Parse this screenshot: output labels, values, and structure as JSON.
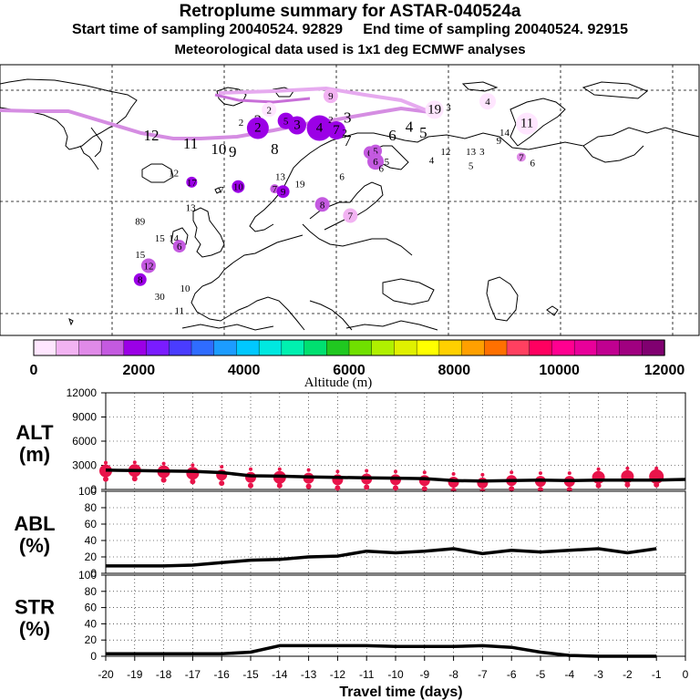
{
  "header": {
    "title": "Retroplume summary for ASTAR-040524a",
    "start_label": "Start time of sampling 20040524. 92829",
    "end_label": "End time of sampling 20040524. 92915",
    "met_label": "Meteorological data used is 1x1 deg ECMWF analyses"
  },
  "colorbar": {
    "label": "Altitude (m)",
    "tick_labels": [
      "0",
      "2000",
      "4000",
      "6000",
      "8000",
      "10000",
      "12000"
    ],
    "colors": [
      "#ffe6ff",
      "#f2b3f2",
      "#e08ae8",
      "#c45ae0",
      "#9b00e6",
      "#7a1cff",
      "#4a3cff",
      "#2f6cff",
      "#1c9cff",
      "#00c8ff",
      "#00e8e0",
      "#00f0b0",
      "#00e070",
      "#20c820",
      "#70e000",
      "#b0f000",
      "#e0f000",
      "#ffff00",
      "#ffd000",
      "#ffa000",
      "#ff7000",
      "#ff4060",
      "#ff0060",
      "#ff0090",
      "#e8009a",
      "#c00090",
      "#a00080",
      "#800070"
    ]
  },
  "plume_labels": [
    {
      "t": "12",
      "lon": -33,
      "lat": 72,
      "z": 3000,
      "r": 0
    },
    {
      "t": "11",
      "lon": -26,
      "lat": 70.5,
      "z": 3000,
      "r": 0
    },
    {
      "t": "10",
      "lon": -21,
      "lat": 69.5,
      "z": 3000,
      "r": 0
    },
    {
      "t": "9",
      "lon": -18.5,
      "lat": 69,
      "z": 3000,
      "r": 0
    },
    {
      "t": "8",
      "lon": -11,
      "lat": 69.5,
      "z": 3000,
      "r": 0
    },
    {
      "t": "7",
      "lon": 2,
      "lat": 71,
      "z": 3000,
      "r": 0
    },
    {
      "t": "6",
      "lon": 10,
      "lat": 72,
      "z": 3000,
      "r": 0
    },
    {
      "t": "5",
      "lon": 15.5,
      "lat": 72.5,
      "z": 3000,
      "r": 0
    },
    {
      "t": "4",
      "lon": 13,
      "lat": 73.5,
      "z": 3000,
      "r": 0
    },
    {
      "t": "3",
      "lon": 2,
      "lat": 75.2,
      "z": 3000,
      "r": 0
    },
    {
      "t": "2",
      "lon": -14,
      "lat": 74.7,
      "z": 3000,
      "r": 0
    },
    {
      "t": "2",
      "lon": -14,
      "lat": 73.2,
      "z": 2000,
      "r": 12
    },
    {
      "t": "3",
      "lon": -7,
      "lat": 73.7,
      "z": 2000,
      "r": 10
    },
    {
      "t": "4",
      "lon": -3,
      "lat": 73.2,
      "z": 2000,
      "r": 14
    },
    {
      "t": "5",
      "lon": -9,
      "lat": 74.5,
      "z": 1800,
      "r": 9
    },
    {
      "t": "2",
      "lon": -12,
      "lat": 76.5,
      "z": 300,
      "r": 8
    },
    {
      "t": "9",
      "lon": -1,
      "lat": 79,
      "z": 500,
      "r": 8
    },
    {
      "t": "2",
      "lon": -1,
      "lat": 74.8,
      "z": 300,
      "r": 0
    },
    {
      "t": "2",
      "lon": -17,
      "lat": 74.3,
      "z": 300,
      "r": 0
    },
    {
      "t": "7",
      "lon": 0,
      "lat": 72.8,
      "z": 2000,
      "r": 10
    },
    {
      "t": "2",
      "lon": 1.5,
      "lat": 72.5,
      "z": 2000,
      "r": 0
    },
    {
      "t": "19",
      "lon": 17.5,
      "lat": 76.5,
      "z": 300,
      "r": 10
    },
    {
      "t": "3",
      "lon": 20,
      "lat": 77,
      "z": 300,
      "r": 0
    },
    {
      "t": "4",
      "lon": 27,
      "lat": 78,
      "z": 300,
      "r": 9
    },
    {
      "t": "11",
      "lon": 34,
      "lat": 74,
      "z": 400,
      "r": 12
    },
    {
      "t": "14",
      "lon": 30,
      "lat": 72.5,
      "z": 1000,
      "r": 0
    },
    {
      "t": "9",
      "lon": 29,
      "lat": 71,
      "z": 1200,
      "r": 0
    },
    {
      "t": "13",
      "lon": 24,
      "lat": 69,
      "z": 1800,
      "r": 0
    },
    {
      "t": "3",
      "lon": 26,
      "lat": 69,
      "z": 1000,
      "r": 0
    },
    {
      "t": "12",
      "lon": 19.5,
      "lat": 69,
      "z": 1600,
      "r": 0
    },
    {
      "t": "7",
      "lon": 33,
      "lat": 68,
      "z": 1200,
      "r": 5
    },
    {
      "t": "6",
      "lon": 35,
      "lat": 67,
      "z": 800,
      "r": 0
    },
    {
      "t": "4",
      "lon": 17,
      "lat": 67.5,
      "z": 600,
      "r": 0
    },
    {
      "t": "5",
      "lon": 24,
      "lat": 66.5,
      "z": 800,
      "r": 0
    },
    {
      "t": "6",
      "lon": 6,
      "lat": 68.8,
      "z": 1500,
      "r": 7
    },
    {
      "t": "5",
      "lon": 7,
      "lat": 69.1,
      "z": 1700,
      "r": 7
    },
    {
      "t": "6",
      "lon": 7,
      "lat": 67.2,
      "z": 1700,
      "r": 9
    },
    {
      "t": "5",
      "lon": 9,
      "lat": 67.2,
      "z": 600,
      "r": 0
    },
    {
      "t": "6",
      "lon": 8,
      "lat": 66,
      "z": 600,
      "r": 0
    },
    {
      "t": "6",
      "lon": 1,
      "lat": 64.5,
      "z": 1200,
      "r": 0
    },
    {
      "t": "12",
      "lon": -29,
      "lat": 65.2,
      "z": 1500,
      "r": 0
    },
    {
      "t": "17",
      "lon": -25.8,
      "lat": 63.5,
      "z": 1800,
      "r": 6
    },
    {
      "t": "7",
      "lon": -20.5,
      "lat": 62.2,
      "z": 1800,
      "r": 0
    },
    {
      "t": "10",
      "lon": -17.5,
      "lat": 62.7,
      "z": 1800,
      "r": 7
    },
    {
      "t": "13",
      "lon": -10,
      "lat": 64.5,
      "z": 1200,
      "r": 0
    },
    {
      "t": "7",
      "lon": -11,
      "lat": 62.3,
      "z": 1300,
      "r": 5
    },
    {
      "t": "9",
      "lon": -9.5,
      "lat": 61.8,
      "z": 1800,
      "r": 7
    },
    {
      "t": "19",
      "lon": -6.5,
      "lat": 63.2,
      "z": 1600,
      "r": 0
    },
    {
      "t": "8",
      "lon": -2.5,
      "lat": 59.5,
      "z": 1300,
      "r": 8
    },
    {
      "t": "7",
      "lon": 2.5,
      "lat": 57.5,
      "z": 500,
      "r": 8
    },
    {
      "t": "13",
      "lon": -26,
      "lat": 59,
      "z": 1800,
      "r": 0
    },
    {
      "t": "89",
      "lon": -35,
      "lat": 56.5,
      "z": 1600,
      "r": 0
    },
    {
      "t": "15",
      "lon": -31.5,
      "lat": 53.5,
      "z": 1500,
      "r": 0
    },
    {
      "t": "14",
      "lon": -29,
      "lat": 53.5,
      "z": 1500,
      "r": 0
    },
    {
      "t": "6",
      "lon": -28,
      "lat": 52,
      "z": 1600,
      "r": 7
    },
    {
      "t": "15",
      "lon": -35,
      "lat": 50.5,
      "z": 1500,
      "r": 0
    },
    {
      "t": "12",
      "lon": -33.5,
      "lat": 48.5,
      "z": 1600,
      "r": 8
    },
    {
      "t": "8",
      "lon": -35,
      "lat": 46,
      "z": 1900,
      "r": 7
    },
    {
      "t": "10",
      "lon": -27,
      "lat": 44.5,
      "z": 1600,
      "r": 0
    },
    {
      "t": "30",
      "lon": -31.5,
      "lat": 43,
      "z": 1600,
      "r": 0
    },
    {
      "t": "11",
      "lon": -28,
      "lat": 40.5,
      "z": 1600,
      "r": 0
    }
  ],
  "chart_data": [
    {
      "type": "line",
      "title": "ALT (m)",
      "panel_label_top": "ALT",
      "panel_label_bottom": "(m)",
      "yticks": [
        "12000",
        "9000",
        "6000",
        "3000",
        "0"
      ],
      "ylim": [
        0,
        12000
      ],
      "x": [
        -20,
        -19,
        -18,
        -17,
        -16,
        -15,
        -14,
        -13,
        -12,
        -11,
        -10,
        -9,
        -8,
        -7,
        -6,
        -5,
        -4,
        -3,
        -2,
        -1,
        0
      ],
      "values": [
        2400,
        2350,
        2300,
        2250,
        2100,
        1700,
        1650,
        1550,
        1500,
        1450,
        1400,
        1350,
        1100,
        1050,
        1100,
        1150,
        1100,
        1150,
        1150,
        1150,
        1250
      ],
      "markers": [
        {
          "x": -20,
          "y": 2300,
          "s": 7
        },
        {
          "x": -19,
          "y": 2350,
          "s": 7
        },
        {
          "x": -18,
          "y": 2200,
          "s": 7
        },
        {
          "x": -17,
          "y": 2000,
          "s": 7
        },
        {
          "x": -16,
          "y": 1800,
          "s": 6
        },
        {
          "x": -15,
          "y": 1500,
          "s": 6
        },
        {
          "x": -14,
          "y": 1500,
          "s": 7
        },
        {
          "x": -13,
          "y": 1400,
          "s": 6
        },
        {
          "x": -12,
          "y": 1200,
          "s": 6
        },
        {
          "x": -11,
          "y": 1300,
          "s": 6
        },
        {
          "x": -10,
          "y": 1200,
          "s": 6
        },
        {
          "x": -9,
          "y": 1100,
          "s": 6
        },
        {
          "x": -8,
          "y": 900,
          "s": 6
        },
        {
          "x": -7,
          "y": 800,
          "s": 6
        },
        {
          "x": -6,
          "y": 1100,
          "s": 6
        },
        {
          "x": -5,
          "y": 1000,
          "s": 6
        },
        {
          "x": -4,
          "y": 1000,
          "s": 6
        },
        {
          "x": -3,
          "y": 1500,
          "s": 7
        },
        {
          "x": -2,
          "y": 1600,
          "s": 7
        },
        {
          "x": -1,
          "y": 1600,
          "s": 8
        }
      ],
      "marker_color": "#e8144a"
    },
    {
      "type": "line",
      "title": "ABL (%)",
      "panel_label_top": "ABL",
      "panel_label_bottom": "(%)",
      "yticks": [
        "100",
        "80",
        "60",
        "40",
        "20",
        "0"
      ],
      "ylim": [
        0,
        100
      ],
      "x": [
        -20,
        -19,
        -18,
        -17,
        -16,
        -15,
        -14,
        -13,
        -12,
        -11,
        -10,
        -9,
        -8,
        -7,
        -6,
        -5,
        -4,
        -3,
        -2,
        -1
      ],
      "values": [
        9,
        9,
        9,
        10,
        13,
        16,
        17,
        20,
        21,
        27,
        25,
        27,
        30,
        24,
        28,
        26,
        28,
        30,
        25,
        30
      ]
    },
    {
      "type": "line",
      "title": "STR (%)",
      "panel_label_top": "STR",
      "panel_label_bottom": "(%)",
      "yticks": [
        "100",
        "80",
        "60",
        "40",
        "20",
        "0"
      ],
      "ylim": [
        0,
        100
      ],
      "x": [
        -20,
        -19,
        -18,
        -17,
        -16,
        -15,
        -14,
        -13,
        -12,
        -11,
        -10,
        -9,
        -8,
        -7,
        -6,
        -5,
        -4,
        -3,
        -2,
        -1
      ],
      "values": [
        3,
        3,
        3,
        3,
        3,
        5,
        13,
        13,
        13,
        13,
        12,
        12,
        12,
        13,
        11,
        5,
        1,
        0,
        0,
        0
      ]
    }
  ],
  "x_axis": {
    "tick_labels": [
      "-20",
      "-19",
      "-18",
      "-17",
      "-16",
      "-15",
      "-14",
      "-13",
      "-12",
      "-11",
      "-10",
      "-9",
      "-8",
      "-7",
      "-6",
      "-5",
      "-4",
      "-3",
      "-2",
      "-1",
      "0"
    ],
    "xlabel": "Travel time (days)"
  }
}
